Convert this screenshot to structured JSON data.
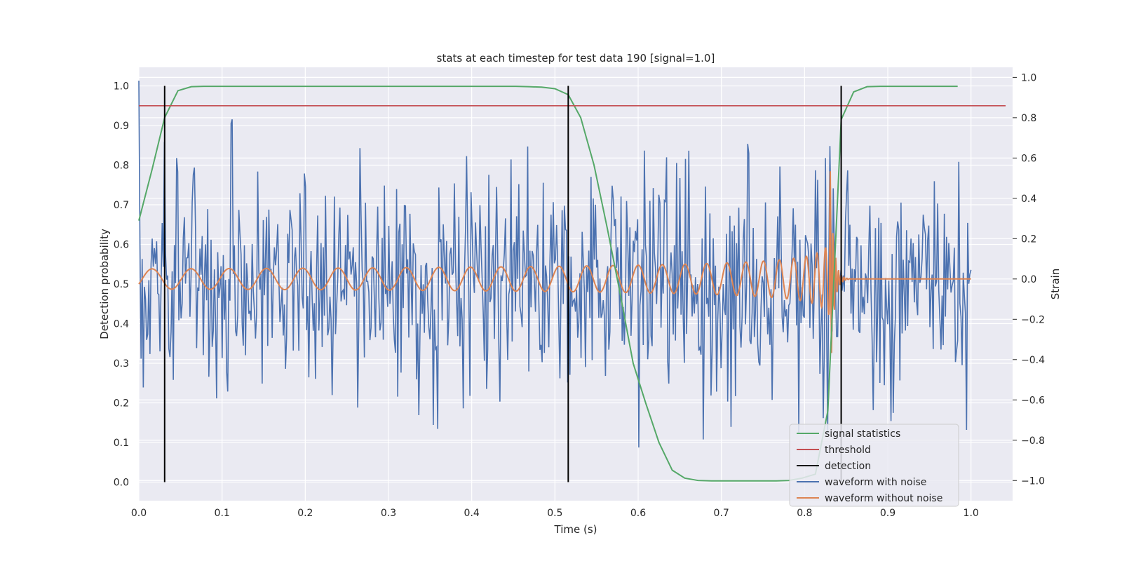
{
  "chart_data": {
    "type": "line",
    "title": "stats at each timestep for test data 190 [signal=1.0]",
    "xlabel": "Time (s)",
    "ylabel": "Detection probability",
    "y2label": "Strain",
    "xlim": [
      0.0,
      1.05
    ],
    "ylim": [
      -0.047,
      1.047
    ],
    "y2lim": [
      -1.1,
      1.05
    ],
    "xticks": [
      "0.0",
      "0.1",
      "0.2",
      "0.3",
      "0.4",
      "0.5",
      "0.6",
      "0.7",
      "0.8",
      "0.9",
      "1.0"
    ],
    "yticks": [
      "0.0",
      "0.1",
      "0.2",
      "0.3",
      "0.4",
      "0.5",
      "0.6",
      "0.7",
      "0.8",
      "0.9",
      "1.0"
    ],
    "y2ticks": [
      "−1.0",
      "−0.8",
      "−0.6",
      "−0.4",
      "−0.2",
      "0.0",
      "0.2",
      "0.4",
      "0.6",
      "0.8",
      "1.0"
    ],
    "grid": true,
    "legend_position": "lower-right",
    "threshold": 0.95,
    "detections": [
      0.031,
      0.516,
      0.844
    ],
    "signal_statistics": {
      "x": [
        0.0,
        0.016,
        0.031,
        0.047,
        0.063,
        0.078,
        0.094,
        0.109,
        0.125,
        0.141,
        0.156,
        0.172,
        0.188,
        0.203,
        0.219,
        0.234,
        0.25,
        0.266,
        0.281,
        0.297,
        0.313,
        0.328,
        0.344,
        0.359,
        0.375,
        0.391,
        0.406,
        0.422,
        0.438,
        0.453,
        0.469,
        0.484,
        0.5,
        0.516,
        0.531,
        0.547,
        0.563,
        0.578,
        0.594,
        0.609,
        0.625,
        0.641,
        0.656,
        0.672,
        0.688,
        0.703,
        0.719,
        0.734,
        0.75,
        0.766,
        0.781,
        0.797,
        0.813,
        0.828,
        0.844,
        0.859,
        0.875,
        0.891,
        0.906,
        0.922,
        0.938,
        0.953,
        0.969,
        0.984
      ],
      "y": [
        0.66,
        0.79,
        0.92,
        0.988,
        0.998,
        0.999,
        0.999,
        0.999,
        0.999,
        0.999,
        0.999,
        0.999,
        0.999,
        0.999,
        0.999,
        0.999,
        0.999,
        0.999,
        0.999,
        0.999,
        0.999,
        0.999,
        0.999,
        0.999,
        0.999,
        0.999,
        0.999,
        0.999,
        0.999,
        0.999,
        0.998,
        0.997,
        0.993,
        0.978,
        0.92,
        0.8,
        0.64,
        0.48,
        0.3,
        0.2,
        0.1,
        0.03,
        0.01,
        0.004,
        0.003,
        0.003,
        0.003,
        0.003,
        0.003,
        0.003,
        0.004,
        0.01,
        0.02,
        0.18,
        0.915,
        0.985,
        0.998,
        0.999,
        0.999,
        0.999,
        0.999,
        0.999,
        0.999,
        0.999
      ]
    },
    "waveform_with_noise": {
      "description_free": true,
      "n": 750,
      "x_range": [
        0.0,
        1.0
      ],
      "strain_range": [
        -1.0,
        1.0
      ]
    },
    "waveform_without_noise": {
      "x_range": [
        0.0,
        1.0
      ],
      "f0": 21,
      "amplitude_start": 0.05,
      "merger_time": 0.83,
      "peak_amplitude": 0.68
    },
    "legend": [
      {
        "label": "signal statistics",
        "color": "#55a868"
      },
      {
        "label": "threshold",
        "color": "#c44e52"
      },
      {
        "label": "detection",
        "color": "#000000"
      },
      {
        "label": "waveform with noise",
        "color": "#4c72b0"
      },
      {
        "label": "waveform without noise",
        "color": "#dd8452"
      }
    ]
  },
  "colors": {
    "axes_bg": "#eaeaf2",
    "grid": "#ffffff",
    "signal": "#55a868",
    "threshold": "#c44e52",
    "detection": "#000000",
    "noisy": "#4c72b0",
    "clean": "#dd8452"
  }
}
